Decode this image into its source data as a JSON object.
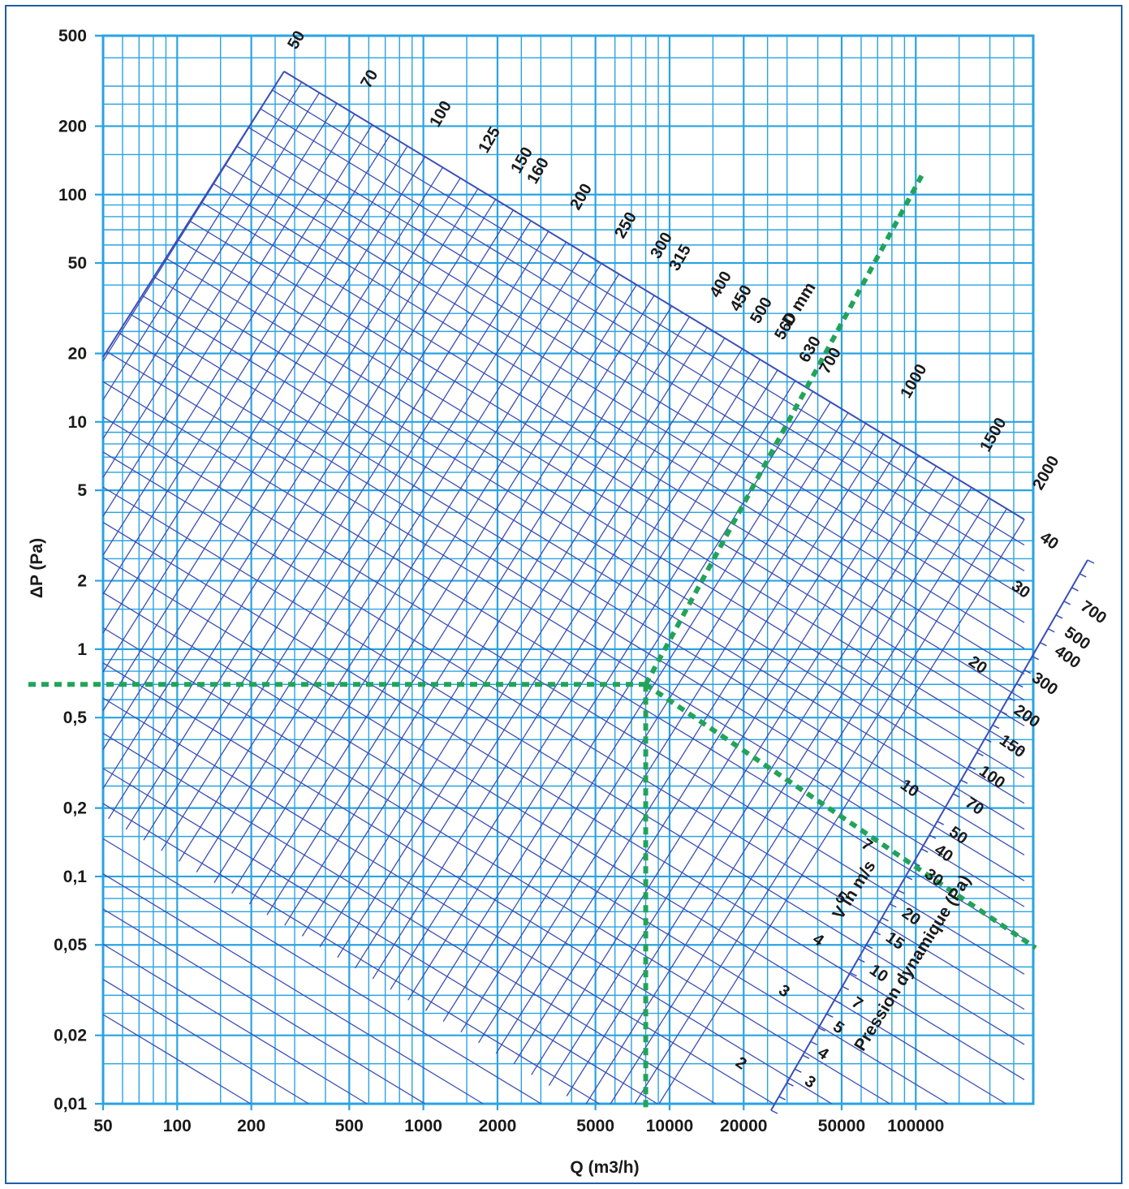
{
  "chart_data": {
    "type": "line",
    "xlabel": "Q (m3/h)",
    "ylabel": "ΔP (Pa)",
    "x_scale": "log",
    "y_scale": "log",
    "grid": true,
    "x_ticks": [
      "50",
      "100",
      "200",
      "500",
      "1000",
      "2000",
      "5000",
      "10000",
      "20000",
      "50000",
      "100000"
    ],
    "y_ticks": [
      "500",
      "200",
      "100",
      "50",
      "20",
      "10",
      "5",
      "2",
      "1",
      "0,5",
      "0,2",
      "0,1",
      "0,05",
      "0,02",
      "0,01"
    ],
    "diameter_family": {
      "title": "D mm",
      "labels": [
        "50",
        "70",
        "100",
        "125",
        "150",
        "160",
        "200",
        "250",
        "300",
        "315",
        "400",
        "450",
        "500",
        "560",
        "630",
        "700",
        "1000",
        "1500",
        "2000"
      ]
    },
    "velocity_family": {
      "title": "V in m/s",
      "labels": [
        "40",
        "30",
        "20",
        "10",
        "7",
        "5",
        "4",
        "3",
        "2"
      ]
    },
    "dynamic_pressure_scale": {
      "title": "Pression dynamique (Pa)",
      "labels": [
        "700",
        "500",
        "400",
        "300",
        "200",
        "150",
        "100",
        "70",
        "50",
        "40",
        "30",
        "20",
        "15",
        "10",
        "7",
        "5",
        "4",
        "3"
      ]
    },
    "example": {
      "pressure_drop": "0,7",
      "flow": "8000"
    },
    "colors": {
      "grid": "#29a3e2",
      "families": "#3a4fb8",
      "example": "#22a35a",
      "frame": "#1f5fa8"
    }
  }
}
